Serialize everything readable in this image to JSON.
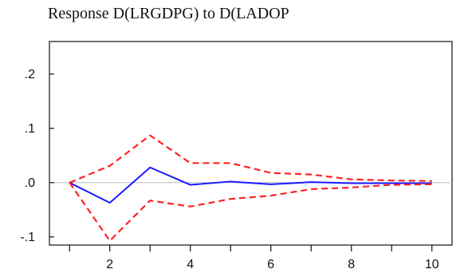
{
  "chart_data": {
    "type": "line",
    "title": "Response D(LRGDPG) to D(LADOP",
    "xlabel": "",
    "ylabel": "",
    "x": [
      1,
      2,
      3,
      4,
      5,
      6,
      7,
      8,
      9,
      10
    ],
    "xlim": [
      0.5,
      10.5
    ],
    "ylim": [
      -0.115,
      0.26
    ],
    "xticks": [
      1,
      2,
      3,
      4,
      5,
      6,
      7,
      8,
      9,
      10
    ],
    "xtick_labels": [
      "",
      "2",
      "",
      "4",
      "",
      "6",
      "",
      "8",
      "",
      "10"
    ],
    "yticks": [
      0.2,
      0.1,
      0.0,
      -0.1
    ],
    "ytick_labels": [
      ".2",
      ".1",
      ".0",
      "-.1"
    ],
    "zero_line": true,
    "grid": false,
    "legend": "none",
    "series": [
      {
        "role": "response",
        "color": "#1a1aff",
        "dash": "solid",
        "values": [
          0.0,
          -0.037,
          0.028,
          -0.004,
          0.002,
          -0.003,
          0.001,
          -0.001,
          -0.001,
          -0.001
        ]
      },
      {
        "role": "upper-band",
        "color": "#ff2222",
        "dash": "dashed",
        "values": [
          0.0,
          0.031,
          0.087,
          0.036,
          0.036,
          0.018,
          0.015,
          0.006,
          0.004,
          0.003
        ]
      },
      {
        "role": "lower-band",
        "color": "#ff2222",
        "dash": "dashed",
        "values": [
          0.0,
          -0.107,
          -0.033,
          -0.044,
          -0.03,
          -0.024,
          -0.012,
          -0.009,
          -0.004,
          -0.003
        ]
      }
    ]
  }
}
